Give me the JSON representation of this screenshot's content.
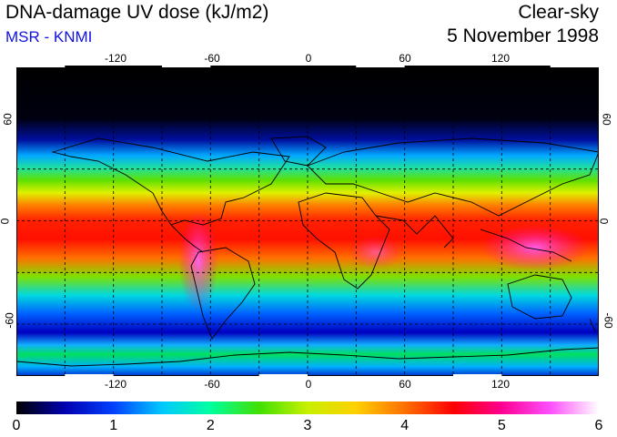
{
  "header": {
    "title": "DNA-damage UV dose (kJ/m2)",
    "subtitle": "MSR - KNMI",
    "condition": "Clear-sky",
    "date": "5 November 1998"
  },
  "map": {
    "lon_ticks": [
      "-120",
      "-60",
      "0",
      "60",
      "120"
    ],
    "lat_ticks_left": [
      "60",
      "0",
      "-60"
    ],
    "lat_ticks_right": [
      "60",
      "0",
      "-60"
    ],
    "lon_values": [
      -120,
      -60,
      0,
      60,
      120
    ],
    "lat_values": [
      60,
      0,
      -60
    ]
  },
  "colorbar": {
    "labels": [
      "0",
      "1",
      "2",
      "3",
      "4",
      "5",
      "6"
    ],
    "range": [
      0,
      6
    ],
    "colors": [
      "#000000",
      "#0000b0",
      "#0040ff",
      "#00c8ff",
      "#00ffa0",
      "#40e000",
      "#c8f000",
      "#ffd000",
      "#ff7000",
      "#ff0000",
      "#ff0090",
      "#ff50ff",
      "#ffffff"
    ]
  }
}
